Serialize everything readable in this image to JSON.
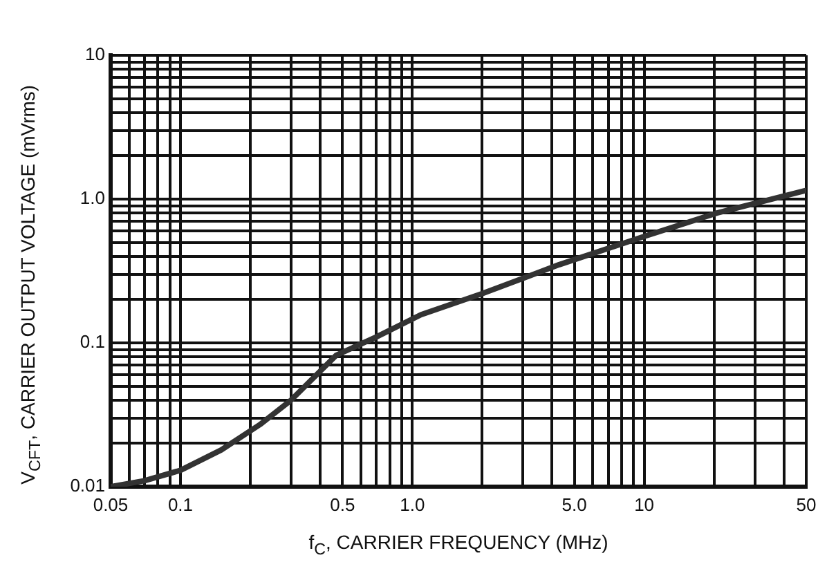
{
  "chart_data": {
    "type": "line",
    "xlabel": "f$_{C}$, CARRIER FREQUENCY (MHz)",
    "ylabel": "V$_{CFT}$, CARRIER OUTPUT VOLTAGE (mVrms)",
    "log": "xy",
    "grid": true,
    "legend": false,
    "marker": "none",
    "line_style": "solid",
    "xlim": [
      0.05,
      50
    ],
    "ylim": [
      0.01,
      10
    ],
    "xticks": [
      0.05,
      {
        "value": 0.06,
        "label": null
      },
      {
        "value": 0.07,
        "label": null
      },
      {
        "value": 0.08,
        "label": null
      },
      {
        "value": 0.09,
        "label": null
      },
      0.1,
      {
        "value": 0.2,
        "label": null
      },
      {
        "value": 0.3,
        "label": null
      },
      {
        "value": 0.4,
        "label": null
      },
      0.5,
      {
        "value": 0.6,
        "label": null
      },
      {
        "value": 0.7,
        "label": null
      },
      {
        "value": 0.8,
        "label": null
      },
      {
        "value": 0.9,
        "label": null
      },
      {
        "value": 1,
        "label": "1.0"
      },
      {
        "value": 2,
        "label": null
      },
      {
        "value": 3,
        "label": null
      },
      {
        "value": 4,
        "label": null
      },
      {
        "value": 5,
        "label": "5.0"
      },
      {
        "value": 6,
        "label": null
      },
      {
        "value": 7,
        "label": null
      },
      {
        "value": 8,
        "label": null
      },
      {
        "value": 9,
        "label": null
      },
      10,
      {
        "value": 20,
        "label": null
      },
      {
        "value": 30,
        "label": null
      },
      {
        "value": 40,
        "label": null
      },
      50
    ],
    "yticks": [
      0.01,
      {
        "value": 0.02,
        "label": null
      },
      {
        "value": 0.03,
        "label": null
      },
      {
        "value": 0.04,
        "label": null
      },
      {
        "value": 0.05,
        "label": null
      },
      {
        "value": 0.06,
        "label": null
      },
      {
        "value": 0.07,
        "label": null
      },
      {
        "value": 0.08,
        "label": null
      },
      {
        "value": 0.09,
        "label": null
      },
      0.1,
      {
        "value": 0.2,
        "label": null
      },
      {
        "value": 0.3,
        "label": null
      },
      {
        "value": 0.4,
        "label": null
      },
      {
        "value": 0.5,
        "label": null
      },
      {
        "value": 0.6,
        "label": null
      },
      {
        "value": 0.7,
        "label": null
      },
      {
        "value": 0.8,
        "label": null
      },
      {
        "value": 0.9,
        "label": null
      },
      {
        "value": 1,
        "label": "1.0"
      },
      {
        "value": 2,
        "label": null
      },
      {
        "value": 3,
        "label": null
      },
      {
        "value": 4,
        "label": null
      },
      {
        "value": 5,
        "label": null
      },
      {
        "value": 6,
        "label": null
      },
      {
        "value": 7,
        "label": null
      },
      {
        "value": 8,
        "label": null
      },
      {
        "value": 9,
        "label": null
      },
      10
    ],
    "series": [
      {
        "color": "#333333",
        "x": [
          0.05,
          0.07,
          0.1,
          0.15,
          0.22,
          0.3,
          0.47,
          0.7,
          1.09,
          2,
          4.3,
          10,
          20.6,
          50
        ],
        "values": [
          0.01,
          0.011,
          0.013,
          0.018,
          0.027,
          0.04,
          0.082,
          0.11,
          0.157,
          0.22,
          0.35,
          0.55,
          0.8,
          1.15
        ]
      }
    ]
  }
}
